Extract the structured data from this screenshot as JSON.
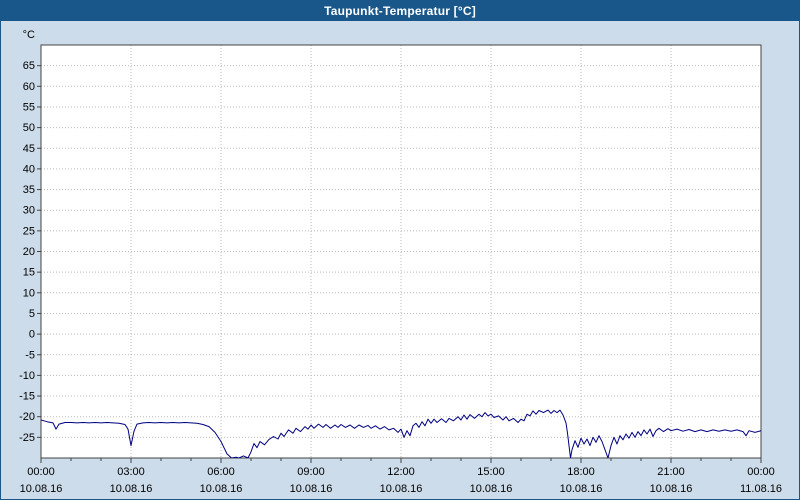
{
  "title": "Taupunkt-Temperatur [°C]",
  "colors": {
    "window_background": "#cddcea",
    "titlebar_background": "#19578a",
    "titlebar_text": "#ffffff",
    "plot_background": "#ffffff",
    "grid": "#bbbbbb",
    "axis": "#444444",
    "series": "#000080",
    "label_text": "#000000"
  },
  "chart_data": {
    "type": "line",
    "title": "Taupunkt-Temperatur [°C]",
    "xlabel": "",
    "ylabel": "°C",
    "ylim": [
      -30,
      70
    ],
    "ytick_min": -25,
    "ytick_max": 65,
    "ytick_step": 5,
    "x_hours_lim": [
      0,
      24
    ],
    "grid": true,
    "legend": "none",
    "xticks": [
      {
        "hour": 0,
        "time": "00:00",
        "date": "10.08.16"
      },
      {
        "hour": 3,
        "time": "03:00",
        "date": "10.08.16"
      },
      {
        "hour": 6,
        "time": "06:00",
        "date": "10.08.16"
      },
      {
        "hour": 9,
        "time": "09:00",
        "date": "10.08.16"
      },
      {
        "hour": 12,
        "time": "12:00",
        "date": "10.08.16"
      },
      {
        "hour": 15,
        "time": "15:00",
        "date": "10.08.16"
      },
      {
        "hour": 18,
        "time": "18:00",
        "date": "10.08.16"
      },
      {
        "hour": 21,
        "time": "21:00",
        "date": "10.08.16"
      },
      {
        "hour": 24,
        "time": "00:00",
        "date": "11.08.16"
      }
    ],
    "series": [
      {
        "name": "Taupunkt-Temperatur",
        "color": "#000080",
        "points": [
          [
            0.0,
            -20.8
          ],
          [
            0.2,
            -21.2
          ],
          [
            0.4,
            -21.5
          ],
          [
            0.5,
            -23.0
          ],
          [
            0.6,
            -21.8
          ],
          [
            0.8,
            -21.4
          ],
          [
            1.0,
            -21.4
          ],
          [
            1.2,
            -21.5
          ],
          [
            1.4,
            -21.4
          ],
          [
            1.6,
            -21.5
          ],
          [
            1.8,
            -21.4
          ],
          [
            2.0,
            -21.5
          ],
          [
            2.2,
            -21.4
          ],
          [
            2.4,
            -21.5
          ],
          [
            2.6,
            -21.6
          ],
          [
            2.8,
            -21.9
          ],
          [
            2.9,
            -23.0
          ],
          [
            3.0,
            -27.0
          ],
          [
            3.1,
            -23.5
          ],
          [
            3.2,
            -21.8
          ],
          [
            3.4,
            -21.5
          ],
          [
            3.6,
            -21.4
          ],
          [
            3.8,
            -21.5
          ],
          [
            4.0,
            -21.4
          ],
          [
            4.2,
            -21.5
          ],
          [
            4.4,
            -21.4
          ],
          [
            4.6,
            -21.5
          ],
          [
            4.8,
            -21.4
          ],
          [
            5.0,
            -21.5
          ],
          [
            5.2,
            -21.6
          ],
          [
            5.4,
            -21.9
          ],
          [
            5.6,
            -22.4
          ],
          [
            5.8,
            -23.8
          ],
          [
            6.0,
            -26.0
          ],
          [
            6.1,
            -27.5
          ],
          [
            6.2,
            -29.0
          ],
          [
            6.35,
            -30.0
          ],
          [
            6.5,
            -29.8
          ],
          [
            6.6,
            -30.0
          ],
          [
            6.75,
            -29.5
          ],
          [
            6.9,
            -30.0
          ],
          [
            7.0,
            -28.5
          ],
          [
            7.1,
            -26.5
          ],
          [
            7.2,
            -27.5
          ],
          [
            7.3,
            -26.0
          ],
          [
            7.45,
            -26.8
          ],
          [
            7.6,
            -25.5
          ],
          [
            7.75,
            -24.8
          ],
          [
            7.9,
            -25.4
          ],
          [
            8.0,
            -24.0
          ],
          [
            8.1,
            -24.8
          ],
          [
            8.25,
            -23.2
          ],
          [
            8.4,
            -24.0
          ],
          [
            8.5,
            -22.8
          ],
          [
            8.65,
            -23.6
          ],
          [
            8.8,
            -22.4
          ],
          [
            8.9,
            -23.0
          ],
          [
            9.0,
            -22.0
          ],
          [
            9.1,
            -22.8
          ],
          [
            9.25,
            -21.8
          ],
          [
            9.4,
            -22.6
          ],
          [
            9.5,
            -21.9
          ],
          [
            9.65,
            -22.8
          ],
          [
            9.8,
            -22.0
          ],
          [
            9.9,
            -22.6
          ],
          [
            10.0,
            -21.9
          ],
          [
            10.15,
            -22.6
          ],
          [
            10.3,
            -22.0
          ],
          [
            10.45,
            -22.8
          ],
          [
            10.6,
            -22.0
          ],
          [
            10.75,
            -22.6
          ],
          [
            10.9,
            -22.1
          ],
          [
            11.0,
            -22.8
          ],
          [
            11.15,
            -22.2
          ],
          [
            11.3,
            -23.0
          ],
          [
            11.45,
            -22.4
          ],
          [
            11.6,
            -23.2
          ],
          [
            11.75,
            -22.8
          ],
          [
            11.9,
            -23.8
          ],
          [
            12.0,
            -23.0
          ],
          [
            12.1,
            -25.0
          ],
          [
            12.2,
            -23.4
          ],
          [
            12.3,
            -24.6
          ],
          [
            12.4,
            -22.2
          ],
          [
            12.5,
            -21.6
          ],
          [
            12.6,
            -22.6
          ],
          [
            12.7,
            -21.2
          ],
          [
            12.8,
            -22.2
          ],
          [
            12.9,
            -20.6
          ],
          [
            13.0,
            -21.6
          ],
          [
            13.1,
            -20.6
          ],
          [
            13.2,
            -21.4
          ],
          [
            13.35,
            -20.5
          ],
          [
            13.5,
            -21.4
          ],
          [
            13.6,
            -20.4
          ],
          [
            13.75,
            -21.0
          ],
          [
            13.9,
            -20.0
          ],
          [
            14.0,
            -20.8
          ],
          [
            14.1,
            -19.6
          ],
          [
            14.2,
            -20.6
          ],
          [
            14.3,
            -19.5
          ],
          [
            14.45,
            -20.4
          ],
          [
            14.6,
            -19.4
          ],
          [
            14.7,
            -20.0
          ],
          [
            14.8,
            -19.0
          ],
          [
            14.9,
            -19.8
          ],
          [
            15.0,
            -19.4
          ],
          [
            15.1,
            -20.2
          ],
          [
            15.25,
            -19.8
          ],
          [
            15.4,
            -20.8
          ],
          [
            15.5,
            -20.0
          ],
          [
            15.6,
            -21.0
          ],
          [
            15.75,
            -20.4
          ],
          [
            15.9,
            -21.4
          ],
          [
            16.0,
            -20.6
          ],
          [
            16.1,
            -21.0
          ],
          [
            16.2,
            -19.4
          ],
          [
            16.3,
            -19.8
          ],
          [
            16.4,
            -18.6
          ],
          [
            16.5,
            -19.4
          ],
          [
            16.6,
            -18.5
          ],
          [
            16.75,
            -19.0
          ],
          [
            16.9,
            -18.4
          ],
          [
            17.0,
            -19.2
          ],
          [
            17.1,
            -18.5
          ],
          [
            17.2,
            -19.0
          ],
          [
            17.3,
            -18.4
          ],
          [
            17.4,
            -19.6
          ],
          [
            17.5,
            -21.5
          ],
          [
            17.55,
            -24.0
          ],
          [
            17.6,
            -27.0
          ],
          [
            17.65,
            -30.0
          ],
          [
            17.7,
            -28.0
          ],
          [
            17.8,
            -25.8
          ],
          [
            17.9,
            -27.4
          ],
          [
            18.0,
            -25.2
          ],
          [
            18.1,
            -26.6
          ],
          [
            18.2,
            -25.4
          ],
          [
            18.3,
            -27.0
          ],
          [
            18.4,
            -25.0
          ],
          [
            18.5,
            -26.2
          ],
          [
            18.6,
            -24.6
          ],
          [
            18.7,
            -26.0
          ],
          [
            18.8,
            -28.0
          ],
          [
            18.9,
            -30.0
          ],
          [
            19.0,
            -27.0
          ],
          [
            19.1,
            -25.0
          ],
          [
            19.2,
            -26.6
          ],
          [
            19.3,
            -24.6
          ],
          [
            19.4,
            -25.6
          ],
          [
            19.5,
            -24.2
          ],
          [
            19.6,
            -25.2
          ],
          [
            19.7,
            -23.8
          ],
          [
            19.8,
            -25.0
          ],
          [
            19.9,
            -23.6
          ],
          [
            20.0,
            -24.6
          ],
          [
            20.1,
            -23.2
          ],
          [
            20.2,
            -24.2
          ],
          [
            20.3,
            -23.0
          ],
          [
            20.4,
            -24.8
          ],
          [
            20.5,
            -23.4
          ],
          [
            20.6,
            -22.8
          ],
          [
            20.75,
            -23.6
          ],
          [
            20.9,
            -22.9
          ],
          [
            21.0,
            -23.4
          ],
          [
            21.2,
            -23.0
          ],
          [
            21.4,
            -23.5
          ],
          [
            21.6,
            -23.1
          ],
          [
            21.8,
            -23.6
          ],
          [
            22.0,
            -23.2
          ],
          [
            22.2,
            -23.6
          ],
          [
            22.4,
            -23.2
          ],
          [
            22.6,
            -23.5
          ],
          [
            22.8,
            -23.2
          ],
          [
            23.0,
            -23.5
          ],
          [
            23.2,
            -23.2
          ],
          [
            23.4,
            -23.6
          ],
          [
            23.5,
            -24.6
          ],
          [
            23.6,
            -23.4
          ],
          [
            23.8,
            -23.8
          ],
          [
            24.0,
            -23.4
          ]
        ]
      }
    ]
  }
}
